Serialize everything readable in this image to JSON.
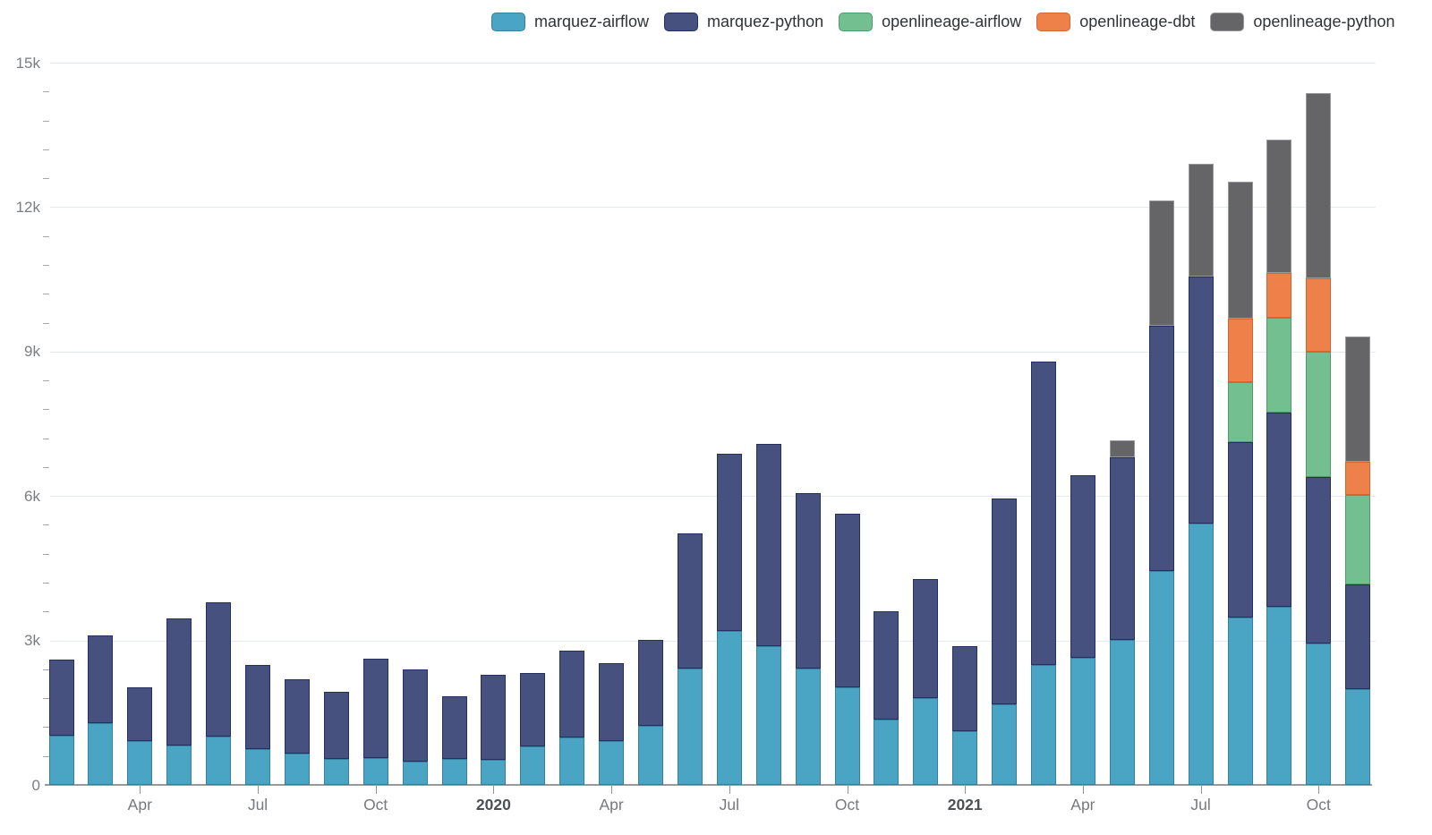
{
  "chart_data": {
    "type": "bar",
    "stacked": true,
    "title": "",
    "grid": true,
    "legend_position": "top-right",
    "categories": [
      "2019-02",
      "2019-03",
      "2019-04",
      "2019-05",
      "2019-06",
      "2019-07",
      "2019-08",
      "2019-09",
      "2019-10",
      "2019-11",
      "2019-12",
      "2020-01",
      "2020-02",
      "2020-03",
      "2020-04",
      "2020-05",
      "2020-06",
      "2020-07",
      "2020-08",
      "2020-09",
      "2020-10",
      "2020-11",
      "2020-12",
      "2021-01",
      "2021-02",
      "2021-03",
      "2021-04",
      "2021-05",
      "2021-06",
      "2021-07",
      "2021-08",
      "2021-09",
      "2021-10",
      "2021-11"
    ],
    "series": [
      {
        "name": "marquez-airflow",
        "color": "#4aa5c5",
        "stroke": "#35809e",
        "values": [
          1025,
          1285,
          910,
          825,
          995,
          740,
          645,
          535,
          565,
          485,
          535,
          515,
          795,
          985,
          905,
          1235,
          2425,
          3200,
          2890,
          2425,
          2020,
          1360,
          1805,
          1110,
          1680,
          2490,
          2640,
          3015,
          4440,
          5435,
          3480,
          3695,
          2945,
          1990
        ]
      },
      {
        "name": "marquez-python",
        "color": "#475180",
        "stroke": "#242f62",
        "values": [
          1580,
          1815,
          1120,
          2635,
          2800,
          1760,
          1545,
          1405,
          2065,
          1920,
          1300,
          1780,
          1520,
          1805,
          1630,
          1775,
          2805,
          3670,
          4185,
          3640,
          3610,
          2245,
          2465,
          1765,
          4265,
          6305,
          3790,
          3795,
          5100,
          5130,
          3640,
          4045,
          3445,
          2175
        ]
      },
      {
        "name": "openlineage-airflow",
        "color": "#74bf90",
        "stroke": "#4e9c6e",
        "values": [
          0,
          0,
          0,
          0,
          0,
          0,
          0,
          0,
          0,
          0,
          0,
          0,
          0,
          0,
          0,
          0,
          0,
          0,
          0,
          0,
          0,
          0,
          0,
          0,
          0,
          0,
          0,
          0,
          0,
          0,
          1245,
          1960,
          2615,
          1855
        ]
      },
      {
        "name": "openlineage-dbt",
        "color": "#ee8149",
        "stroke": "#d2662e",
        "values": [
          0,
          0,
          0,
          0,
          0,
          0,
          0,
          0,
          0,
          0,
          0,
          0,
          0,
          0,
          0,
          0,
          0,
          0,
          0,
          0,
          0,
          0,
          0,
          0,
          0,
          0,
          0,
          0,
          0,
          0,
          1315,
          940,
          1520,
          695
        ]
      },
      {
        "name": "openlineage-python",
        "color": "#656567",
        "stroke": "#98999b",
        "values": [
          0,
          0,
          0,
          0,
          0,
          0,
          0,
          0,
          0,
          0,
          0,
          0,
          0,
          0,
          0,
          0,
          0,
          0,
          0,
          0,
          0,
          0,
          0,
          0,
          0,
          0,
          0,
          350,
          2590,
          2340,
          2850,
          2760,
          3845,
          2590
        ]
      }
    ],
    "y_axis": {
      "min": 0,
      "max": 15000,
      "major_step": 3000,
      "minor_step": 600,
      "tick_labels": [
        "0",
        "3k",
        "6k",
        "9k",
        "12k",
        "15k"
      ]
    },
    "x_ticks": [
      {
        "index": 2,
        "label": "Apr",
        "bold": false
      },
      {
        "index": 5,
        "label": "Jul",
        "bold": false
      },
      {
        "index": 8,
        "label": "Oct",
        "bold": false
      },
      {
        "index": 11,
        "label": "2020",
        "bold": true
      },
      {
        "index": 14,
        "label": "Apr",
        "bold": false
      },
      {
        "index": 17,
        "label": "Jul",
        "bold": false
      },
      {
        "index": 20,
        "label": "Oct",
        "bold": false
      },
      {
        "index": 23,
        "label": "2021",
        "bold": true
      },
      {
        "index": 26,
        "label": "Apr",
        "bold": false
      },
      {
        "index": 29,
        "label": "Jul",
        "bold": false
      },
      {
        "index": 32,
        "label": "Oct",
        "bold": false
      }
    ],
    "colors": {
      "background": "#ffffff",
      "gridline": "#e4e9f2",
      "axis_line": "#97999b",
      "tick": "#a7aaad",
      "month_label": "#77797c",
      "year_label": "#4e5154",
      "y_label": "#7b7e81",
      "legend_text": "#2f3337"
    }
  }
}
